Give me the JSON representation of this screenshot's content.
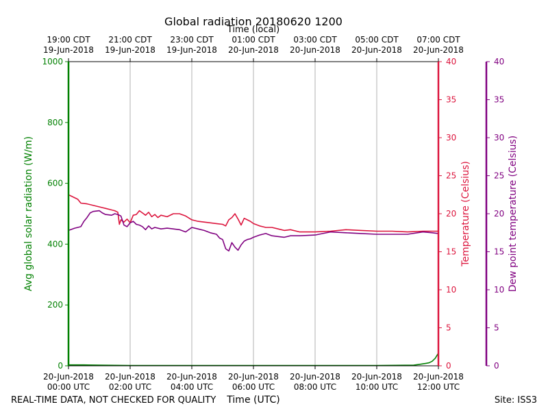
{
  "chart_data": {
    "type": "line",
    "title": "Global radiation 20180620 1200",
    "top_axis_label": "Time (local)",
    "xlabel": "Time (UTC)",
    "footer_left": "REAL-TIME DATA, NOT CHECKED FOR QUALITY",
    "footer_right": "Site: ISS3",
    "xlim": [
      0,
      12
    ],
    "bottom_ticks": [
      {
        "x": 0,
        "line1": "20-Jun-2018",
        "line2": "00:00 UTC"
      },
      {
        "x": 2,
        "line1": "20-Jun-2018",
        "line2": "02:00 UTC"
      },
      {
        "x": 4,
        "line1": "20-Jun-2018",
        "line2": "04:00 UTC"
      },
      {
        "x": 6,
        "line1": "20-Jun-2018",
        "line2": "06:00 UTC"
      },
      {
        "x": 8,
        "line1": "20-Jun-2018",
        "line2": "08:00 UTC"
      },
      {
        "x": 10,
        "line1": "20-Jun-2018",
        "line2": "10:00 UTC"
      },
      {
        "x": 12,
        "line1": "20-Jun-2018",
        "line2": "12:00 UTC"
      }
    ],
    "top_ticks": [
      {
        "x": 0,
        "line1": "19:00 CDT",
        "line2": "19-Jun-2018"
      },
      {
        "x": 2,
        "line1": "21:00 CDT",
        "line2": "19-Jun-2018"
      },
      {
        "x": 4,
        "line1": "23:00 CDT",
        "line2": "19-Jun-2018"
      },
      {
        "x": 6,
        "line1": "01:00 CDT",
        "line2": "20-Jun-2018"
      },
      {
        "x": 8,
        "line1": "03:00 CDT",
        "line2": "20-Jun-2018"
      },
      {
        "x": 10,
        "line1": "05:00 CDT",
        "line2": "20-Jun-2018"
      },
      {
        "x": 12,
        "line1": "07:00 CDT",
        "line2": "20-Jun-2018"
      }
    ],
    "grid_x": true,
    "y_left": {
      "label": "Avg global solar radiation (W/m)",
      "ylim": [
        0,
        1000
      ],
      "ticks": [
        0,
        200,
        400,
        600,
        800,
        1000
      ],
      "color": "#008000"
    },
    "y_right1": {
      "label": "Temperature (Celsius)",
      "ylim": [
        0,
        40
      ],
      "ticks": [
        0,
        5,
        10,
        15,
        20,
        25,
        30,
        35,
        40
      ],
      "color": "#dc143c"
    },
    "y_right2": {
      "label": "Dew point temperature (Celsius)",
      "ylim": [
        0,
        40
      ],
      "ticks": [
        0,
        5,
        10,
        15,
        20,
        25,
        30,
        35,
        40
      ],
      "color": "#800080"
    },
    "series": [
      {
        "axis": "left",
        "color": "#008000",
        "x": [
          0,
          0.5,
          1,
          2,
          4,
          6,
          8,
          10,
          11.2,
          11.4,
          11.6,
          11.7,
          11.8,
          11.9,
          12.0
        ],
        "y": [
          3,
          3,
          2,
          1,
          1,
          1,
          1,
          1,
          2,
          5,
          8,
          10,
          15,
          25,
          42
        ]
      },
      {
        "axis": "right1",
        "color": "#dc143c",
        "x": [
          0,
          0.1,
          0.3,
          0.4,
          0.6,
          1.0,
          1.1,
          1.2,
          1.4,
          1.5,
          1.6,
          1.65,
          1.7,
          1.8,
          1.9,
          2.0,
          2.1,
          2.2,
          2.3,
          2.4,
          2.5,
          2.6,
          2.7,
          2.8,
          2.9,
          3.0,
          3.2,
          3.4,
          3.6,
          3.8,
          4.0,
          4.2,
          4.4,
          4.6,
          4.8,
          5.0,
          5.1,
          5.2,
          5.3,
          5.4,
          5.5,
          5.6,
          5.7,
          5.8,
          5.9,
          6.0,
          6.2,
          6.4,
          6.6,
          6.8,
          7.0,
          7.2,
          7.5,
          8.0,
          8.5,
          9.0,
          9.5,
          10.0,
          10.5,
          11.0,
          11.5,
          12.0
        ],
        "y": [
          22.5,
          22.3,
          21.9,
          21.4,
          21.3,
          20.9,
          20.8,
          20.7,
          20.5,
          20.4,
          20.2,
          18.6,
          19.2,
          18.9,
          19.3,
          18.8,
          19.8,
          19.9,
          20.4,
          20.1,
          19.8,
          20.2,
          19.6,
          19.9,
          19.5,
          19.8,
          19.6,
          20.0,
          20.0,
          19.7,
          19.2,
          19.0,
          18.9,
          18.8,
          18.7,
          18.6,
          18.4,
          19.2,
          19.5,
          20.0,
          19.3,
          18.5,
          19.4,
          19.2,
          19.0,
          18.7,
          18.4,
          18.2,
          18.2,
          18.0,
          17.8,
          17.9,
          17.6,
          17.6,
          17.7,
          17.9,
          17.8,
          17.7,
          17.7,
          17.6,
          17.7,
          17.7
        ]
      },
      {
        "axis": "right2",
        "color": "#800080",
        "x": [
          0,
          0.2,
          0.4,
          0.5,
          0.6,
          0.7,
          0.8,
          1.0,
          1.1,
          1.2,
          1.4,
          1.5,
          1.6,
          1.7,
          1.8,
          1.9,
          2.0,
          2.1,
          2.2,
          2.3,
          2.4,
          2.5,
          2.6,
          2.7,
          2.8,
          3.0,
          3.2,
          3.4,
          3.6,
          3.8,
          4.0,
          4.2,
          4.4,
          4.6,
          4.8,
          4.9,
          5.0,
          5.1,
          5.2,
          5.3,
          5.4,
          5.5,
          5.6,
          5.7,
          5.8,
          5.9,
          6.0,
          6.2,
          6.4,
          6.6,
          6.8,
          7.0,
          7.2,
          7.5,
          8.0,
          8.5,
          9.0,
          9.5,
          10.0,
          10.5,
          11.0,
          11.5,
          11.8,
          12.0
        ],
        "y": [
          17.8,
          18.1,
          18.3,
          19.0,
          19.5,
          20.1,
          20.3,
          20.4,
          20.1,
          19.9,
          19.8,
          20.0,
          19.9,
          19.7,
          18.5,
          18.3,
          18.8,
          19.0,
          18.6,
          18.5,
          18.3,
          17.9,
          18.4,
          18.0,
          18.2,
          18.0,
          18.1,
          18.0,
          17.9,
          17.6,
          18.2,
          18.0,
          17.8,
          17.5,
          17.3,
          16.8,
          16.6,
          15.4,
          15.1,
          16.2,
          15.6,
          15.2,
          15.9,
          16.4,
          16.6,
          16.7,
          16.9,
          17.2,
          17.4,
          17.1,
          17.0,
          16.9,
          17.1,
          17.1,
          17.2,
          17.6,
          17.5,
          17.4,
          17.3,
          17.3,
          17.3,
          17.6,
          17.5,
          17.4
        ]
      }
    ]
  }
}
